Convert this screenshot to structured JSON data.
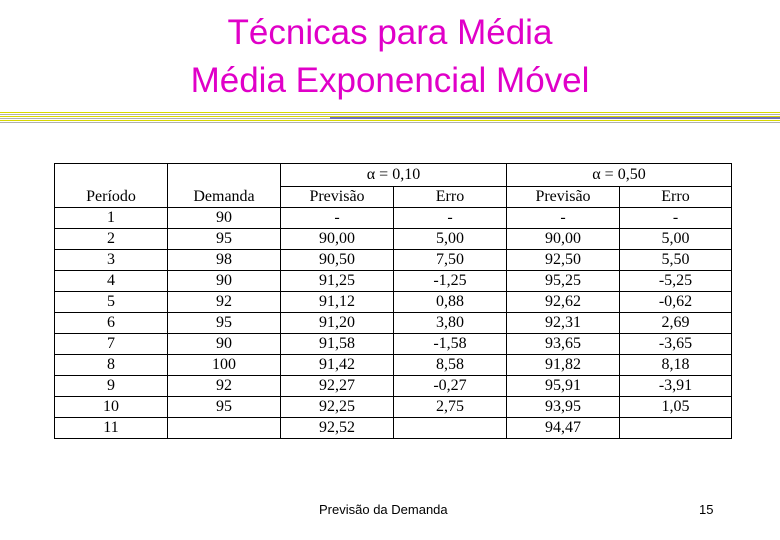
{
  "slide": {
    "title_line1": "Técnicas para Média",
    "title_line2": "Média Exponencial Móvel",
    "footer_text": "Previsão da Demanda",
    "page_number": "15"
  },
  "table": {
    "group_headers": [
      "α = 0,10",
      "α = 0,50"
    ],
    "columns": [
      "Período",
      "Demanda",
      "Previsão",
      "Erro",
      "Previsão",
      "Erro"
    ],
    "rows": [
      [
        "1",
        "90",
        "-",
        "-",
        "-",
        "-"
      ],
      [
        "2",
        "95",
        "90,00",
        "5,00",
        "90,00",
        "5,00"
      ],
      [
        "3",
        "98",
        "90,50",
        "7,50",
        "92,50",
        "5,50"
      ],
      [
        "4",
        "90",
        "91,25",
        "-1,25",
        "95,25",
        "-5,25"
      ],
      [
        "5",
        "92",
        "91,12",
        "0,88",
        "92,62",
        "-0,62"
      ],
      [
        "6",
        "95",
        "91,20",
        "3,80",
        "92,31",
        "2,69"
      ],
      [
        "7",
        "90",
        "91,58",
        "-1,58",
        "93,65",
        "-3,65"
      ],
      [
        "8",
        "100",
        "91,42",
        "8,58",
        "91,82",
        "8,18"
      ],
      [
        "9",
        "92",
        "92,27",
        "-0,27",
        "95,91",
        "-3,91"
      ],
      [
        "10",
        "95",
        "92,25",
        "2,75",
        "93,95",
        "1,05"
      ],
      [
        "11",
        "",
        "92,52",
        "",
        "94,47",
        ""
      ]
    ]
  },
  "colors": {
    "title": "#e000c8",
    "rule_yellow": "#d9d900",
    "rule_blue": "#7070b8"
  }
}
